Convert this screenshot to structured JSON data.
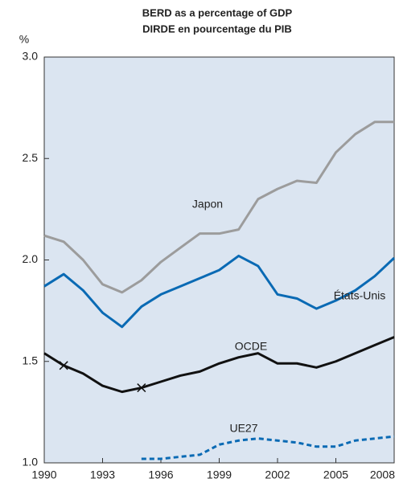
{
  "chart_data": {
    "type": "line",
    "title": "BERD as a percentage of GDP",
    "subtitle": "DIRDE en pourcentage du PIB",
    "y_label": "%",
    "x": [
      1990,
      1991,
      1992,
      1993,
      1994,
      1995,
      1996,
      1997,
      1998,
      1999,
      2000,
      2001,
      2002,
      2003,
      2004,
      2005,
      2006,
      2007,
      2008
    ],
    "xlim": [
      1990,
      2008
    ],
    "xticks": [
      1990,
      1993,
      1996,
      1999,
      2002,
      2005,
      2008
    ],
    "ylim": [
      1,
      3
    ],
    "yticks": [
      {
        "value": 1,
        "label": "1.0"
      },
      {
        "value": 1.5,
        "label": "1.5"
      },
      {
        "value": 2,
        "label": "2.0"
      },
      {
        "value": 2.5,
        "label": "2.5"
      },
      {
        "value": 3,
        "label": "3.0"
      }
    ],
    "grid": false,
    "background": "#dbe5f1",
    "series": [
      {
        "name": "Japon",
        "color": "#9c9c9c",
        "dashed": false,
        "values": [
          2.12,
          2.09,
          2.0,
          1.88,
          1.84,
          1.9,
          1.99,
          2.06,
          2.13,
          2.13,
          2.15,
          2.3,
          2.35,
          2.39,
          2.38,
          2.53,
          2.62,
          2.68,
          2.68
        ]
      },
      {
        "name": "États-Unis",
        "color": "#0a6ab4",
        "dashed": false,
        "values": [
          1.87,
          1.93,
          1.85,
          1.74,
          1.67,
          1.77,
          1.83,
          1.87,
          1.91,
          1.95,
          2.02,
          1.97,
          1.83,
          1.81,
          1.76,
          1.8,
          1.85,
          1.92,
          2.01
        ]
      },
      {
        "name": "OCDE",
        "color": "#111111",
        "dashed": false,
        "break_markers": [
          1,
          5
        ],
        "values": [
          1.54,
          1.48,
          1.44,
          1.38,
          1.35,
          1.37,
          1.4,
          1.43,
          1.45,
          1.49,
          1.52,
          1.54,
          1.49,
          1.49,
          1.47,
          1.5,
          1.54,
          1.58,
          1.62
        ]
      },
      {
        "name": "UE27",
        "color": "#0a6ab4",
        "dashed": true,
        "values": [
          null,
          null,
          null,
          null,
          null,
          1.02,
          1.02,
          1.03,
          1.04,
          1.09,
          1.11,
          1.12,
          1.11,
          1.1,
          1.08,
          1.08,
          1.11,
          1.12,
          1.13
        ]
      }
    ]
  }
}
